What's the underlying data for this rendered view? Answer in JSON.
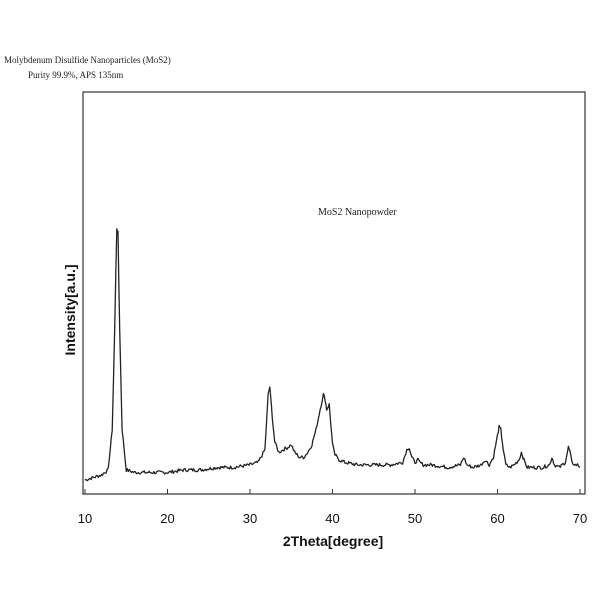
{
  "header": {
    "title": "Molybdenum Disulfide Nanoparticles (MoS2)",
    "subtitle": "Purity  99.9%,  APS  135nm"
  },
  "chart_data": {
    "type": "line",
    "title": "",
    "xlabel": "2Theta[degree]",
    "ylabel": "Intensity[a.u.]",
    "xlim": [
      10,
      70
    ],
    "ylim": [
      0,
      100
    ],
    "xticks": [
      10,
      20,
      30,
      40,
      50,
      60,
      70
    ],
    "annotation": "MoS2 Nanopowder",
    "grid": false,
    "series": [
      {
        "color": "#222222",
        "x": [
          10.0,
          11.0,
          12.0,
          12.8,
          13.3,
          13.6,
          13.85,
          14.0,
          14.2,
          14.5,
          15.0,
          16.0,
          18.0,
          20.0,
          22.0,
          24.0,
          26.0,
          28.0,
          30.0,
          31.0,
          31.8,
          32.2,
          32.4,
          32.7,
          33.0,
          33.5,
          34.0,
          34.6,
          35.0,
          35.4,
          35.7,
          36.0,
          36.5,
          37.0,
          37.5,
          38.0,
          38.5,
          38.9,
          39.1,
          39.3,
          39.6,
          39.8,
          40.0,
          40.3,
          40.8,
          41.5,
          43.0,
          45.0,
          47.0,
          48.5,
          49.0,
          49.3,
          49.6,
          50.0,
          50.3,
          50.6,
          51.0,
          52.0,
          54.0,
          55.5,
          55.9,
          56.3,
          57.0,
          58.0,
          58.5,
          59.0,
          59.5,
          59.9,
          60.2,
          60.4,
          60.7,
          61.0,
          61.5,
          62.0,
          62.6,
          62.9,
          63.2,
          63.6,
          64.5,
          65.5,
          66.3,
          66.6,
          66.9,
          67.5,
          68.2,
          68.6,
          68.8,
          69.0,
          69.4,
          69.7,
          70.0
        ],
        "y": [
          0,
          1,
          2,
          4,
          20,
          60,
          100,
          98,
          60,
          20,
          4,
          3,
          3,
          3,
          4,
          4,
          5,
          5,
          6,
          7,
          12,
          34,
          37,
          25,
          15,
          11,
          12,
          13,
          14,
          11,
          10,
          9,
          9,
          11,
          14,
          20,
          28,
          34,
          32,
          28,
          30,
          22,
          14,
          10,
          8,
          7,
          6,
          6,
          6,
          7,
          12,
          13,
          9,
          7,
          8,
          7,
          6,
          6,
          5,
          6,
          9,
          6,
          5,
          6,
          8,
          6,
          9,
          16,
          21,
          20,
          12,
          6,
          5,
          6,
          8,
          11,
          8,
          5,
          5,
          5,
          6,
          9,
          6,
          5,
          7,
          13,
          11,
          7,
          6,
          6,
          5
        ]
      }
    ]
  }
}
